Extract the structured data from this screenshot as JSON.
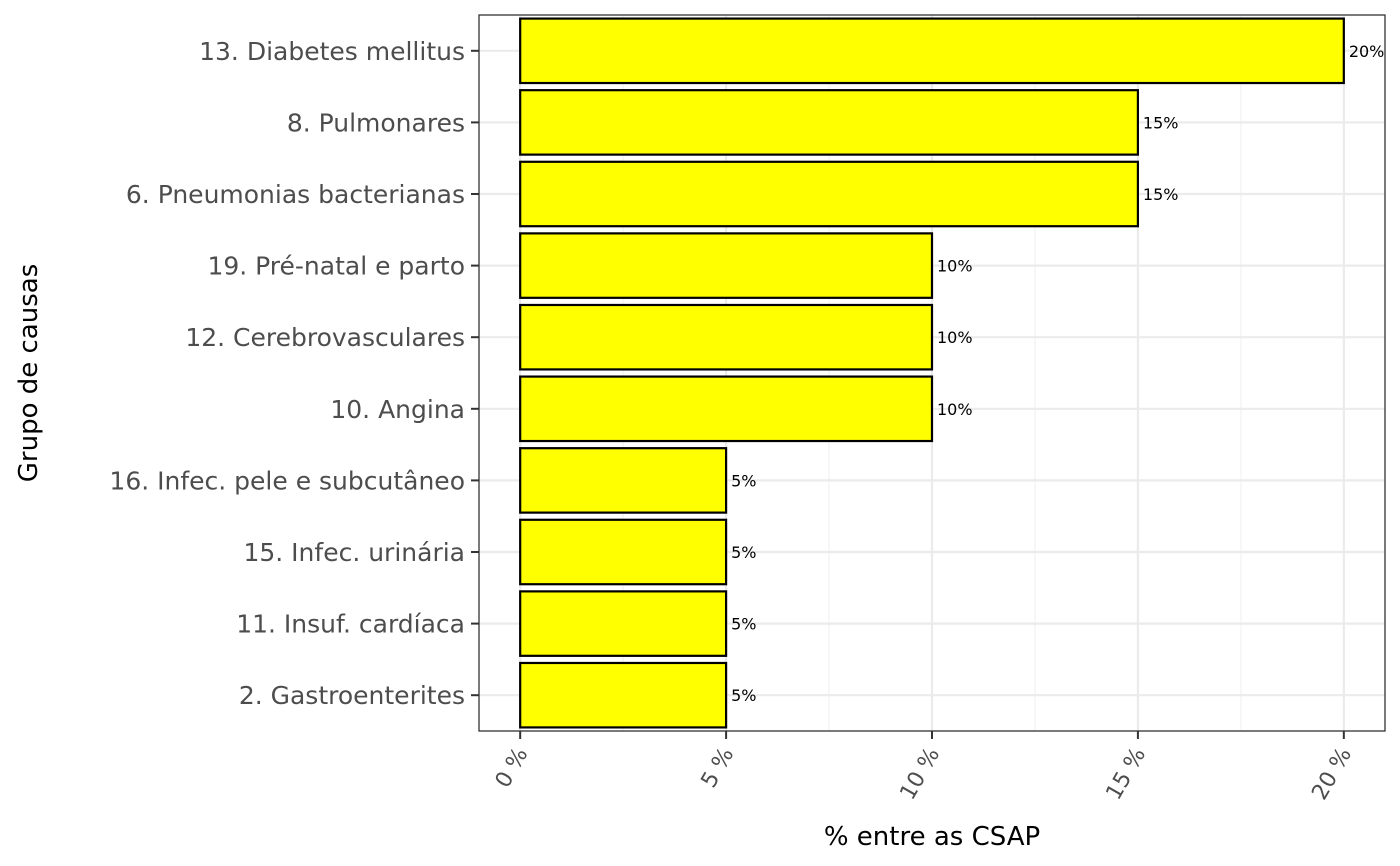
{
  "chart_data": {
    "type": "bar",
    "orientation": "horizontal",
    "categories": [
      "13. Diabetes mellitus",
      "8. Pulmonares",
      "6. Pneumonias bacterianas",
      "19. Pré-natal e parto",
      "12. Cerebrovasculares",
      "10. Angina",
      "16. Infec. pele e subcutâneo",
      "15. Infec. urinária",
      "11. Insuf. cardíaca",
      "2. Gastroenterites"
    ],
    "values": [
      20,
      15,
      15,
      10,
      10,
      10,
      5,
      5,
      5,
      5
    ],
    "data_labels": [
      "20%",
      "15%",
      "15%",
      "10%",
      "10%",
      "10%",
      "5%",
      "5%",
      "5%",
      "5%"
    ],
    "xlabel": "% entre as CSAP",
    "ylabel": "Grupo de causas",
    "xlim": [
      -1,
      21
    ],
    "x_ticks": [
      0,
      5,
      10,
      15,
      20
    ],
    "x_tick_labels": [
      "0 %",
      "5 %",
      "10 %",
      "15 %",
      "20 %"
    ],
    "grid": true,
    "bar_fill": "#ffff00",
    "bar_stroke": "#000000"
  }
}
